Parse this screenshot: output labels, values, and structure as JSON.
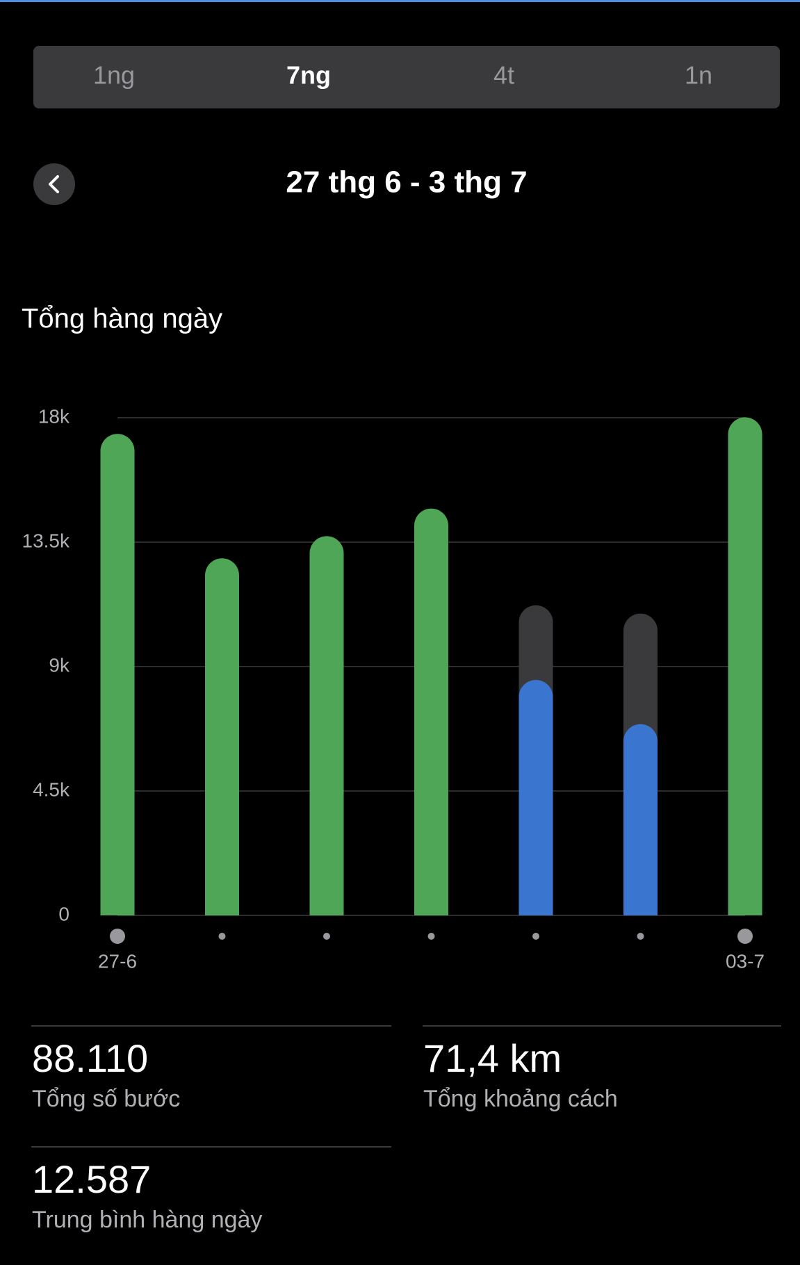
{
  "tabs": [
    "1ng",
    "7ng",
    "4t",
    "1n"
  ],
  "active_tab": 1,
  "date_range": "27 thg 6 - 3 thg 7",
  "chart_data": {
    "type": "bar",
    "title": "Tổng hàng ngày",
    "categories": [
      "27-6",
      null,
      null,
      null,
      null,
      null,
      "03-7"
    ],
    "values": [
      16800,
      12300,
      13100,
      14100,
      7900,
      6300,
      17400
    ],
    "bar_colors": [
      "#4fa657",
      "#4fa657",
      "#4fa657",
      "#4fa657",
      "#3a76cf",
      "#3a76cf",
      "#4fa657"
    ],
    "goal_values": [
      null,
      null,
      null,
      null,
      10600,
      10300,
      null
    ],
    "goal_color": "#3a3a3c",
    "ylim": [
      0,
      18000
    ],
    "yticks": [
      {
        "value": 0,
        "label": "0"
      },
      {
        "value": 4500,
        "label": "4.5k"
      },
      {
        "value": 9000,
        "label": "9k"
      },
      {
        "value": 13500,
        "label": "13.5k"
      },
      {
        "value": 18000,
        "label": "18k"
      }
    ],
    "grid": true
  },
  "stats": [
    {
      "value": "88.110",
      "label": "Tổng số bước"
    },
    {
      "value": "71,4 km",
      "label": "Tổng khoảng cách"
    },
    {
      "value": "12.587",
      "label": "Trung bình hàng ngày"
    }
  ]
}
